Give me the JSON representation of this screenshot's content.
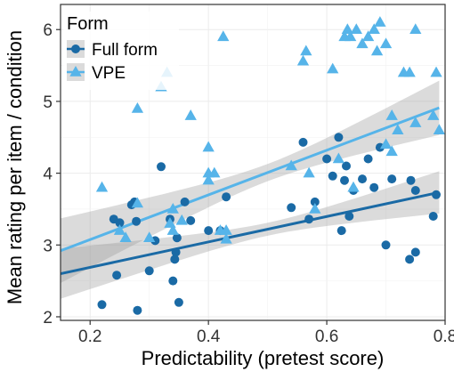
{
  "chart_data": {
    "type": "scatter",
    "xlabel": "Predictability (pretest score)",
    "ylabel": "Mean rating per item / condition",
    "xlim": [
      0.15,
      0.8
    ],
    "ylim": [
      1.95,
      6.35
    ],
    "xticks": [
      "0.2",
      "0.4",
      "0.6",
      "0.8"
    ],
    "yticks": [
      "2",
      "3",
      "4",
      "5",
      "6"
    ],
    "xtick_values": [
      0.2,
      0.4,
      0.6,
      0.8
    ],
    "ytick_values": [
      2,
      3,
      4,
      5,
      6
    ],
    "grid": true,
    "legend": {
      "title": "Form",
      "position": "top-left"
    },
    "series": [
      {
        "name": "Full form",
        "marker": "circle",
        "color": "#1a6aa5",
        "fit": {
          "intercept": 2.6,
          "slope": 1.77,
          "ci_halfwidth_at_ends": 0.35,
          "ci_halfwidth_at_center": 0.09,
          "x_center": 0.5
        },
        "points": [
          [
            0.22,
            2.17
          ],
          [
            0.24,
            3.36
          ],
          [
            0.245,
            2.58
          ],
          [
            0.25,
            3.31
          ],
          [
            0.27,
            3.56
          ],
          [
            0.275,
            3.6
          ],
          [
            0.278,
            3.33
          ],
          [
            0.28,
            2.09
          ],
          [
            0.3,
            2.64
          ],
          [
            0.31,
            3.06
          ],
          [
            0.32,
            4.09
          ],
          [
            0.335,
            3.36
          ],
          [
            0.34,
            2.5
          ],
          [
            0.343,
            2.8
          ],
          [
            0.345,
            2.9
          ],
          [
            0.347,
            3.1
          ],
          [
            0.35,
            2.2
          ],
          [
            0.36,
            3.6
          ],
          [
            0.37,
            3.34
          ],
          [
            0.4,
            3.2
          ],
          [
            0.42,
            3.2
          ],
          [
            0.43,
            3.67
          ],
          [
            0.54,
            3.52
          ],
          [
            0.56,
            4.43
          ],
          [
            0.57,
            3.36
          ],
          [
            0.58,
            3.6
          ],
          [
            0.6,
            4.2
          ],
          [
            0.61,
            3.96
          ],
          [
            0.62,
            4.5
          ],
          [
            0.625,
            3.2
          ],
          [
            0.63,
            3.9
          ],
          [
            0.633,
            4.1
          ],
          [
            0.638,
            3.4
          ],
          [
            0.645,
            3.76
          ],
          [
            0.66,
            3.92
          ],
          [
            0.67,
            4.2
          ],
          [
            0.68,
            3.8
          ],
          [
            0.69,
            4.36
          ],
          [
            0.7,
            3.0
          ],
          [
            0.71,
            3.92
          ],
          [
            0.74,
            2.8
          ],
          [
            0.742,
            3.9
          ],
          [
            0.75,
            2.9
          ],
          [
            0.75,
            3.76
          ],
          [
            0.78,
            3.4
          ],
          [
            0.785,
            3.7
          ]
        ]
      },
      {
        "name": "VPE",
        "marker": "triangle",
        "color": "#56b4e9",
        "fit": {
          "intercept": 2.92,
          "slope": 3.11,
          "ci_halfwidth_at_ends": 0.45,
          "ci_halfwidth_at_center": 0.12,
          "x_center": 0.5
        },
        "points": [
          [
            0.22,
            3.8
          ],
          [
            0.25,
            3.2
          ],
          [
            0.26,
            3.1
          ],
          [
            0.28,
            3.58
          ],
          [
            0.28,
            4.9
          ],
          [
            0.3,
            3.1
          ],
          [
            0.32,
            5.2
          ],
          [
            0.33,
            5.4
          ],
          [
            0.335,
            3.3
          ],
          [
            0.34,
            3.5
          ],
          [
            0.34,
            3.2
          ],
          [
            0.355,
            3.34
          ],
          [
            0.37,
            4.8
          ],
          [
            0.4,
            4.36
          ],
          [
            0.4,
            4.0
          ],
          [
            0.4,
            3.9
          ],
          [
            0.41,
            4.0
          ],
          [
            0.42,
            3.2
          ],
          [
            0.425,
            5.9
          ],
          [
            0.43,
            3.2
          ],
          [
            0.43,
            3.08
          ],
          [
            0.54,
            4.1
          ],
          [
            0.56,
            5.56
          ],
          [
            0.565,
            5.7
          ],
          [
            0.57,
            4.0
          ],
          [
            0.58,
            3.5
          ],
          [
            0.61,
            5.45
          ],
          [
            0.62,
            4.2
          ],
          [
            0.63,
            5.9
          ],
          [
            0.635,
            6.0
          ],
          [
            0.64,
            5.9
          ],
          [
            0.645,
            3.8
          ],
          [
            0.65,
            6.0
          ],
          [
            0.66,
            5.8
          ],
          [
            0.67,
            5.9
          ],
          [
            0.68,
            6.0
          ],
          [
            0.685,
            5.7
          ],
          [
            0.69,
            6.1
          ],
          [
            0.7,
            5.8
          ],
          [
            0.7,
            4.4
          ],
          [
            0.71,
            4.8
          ],
          [
            0.71,
            4.3
          ],
          [
            0.72,
            4.6
          ],
          [
            0.73,
            5.4
          ],
          [
            0.74,
            5.4
          ],
          [
            0.75,
            6.0
          ],
          [
            0.75,
            4.7
          ],
          [
            0.78,
            4.8
          ],
          [
            0.785,
            5.4
          ],
          [
            0.79,
            4.6
          ]
        ]
      }
    ]
  }
}
